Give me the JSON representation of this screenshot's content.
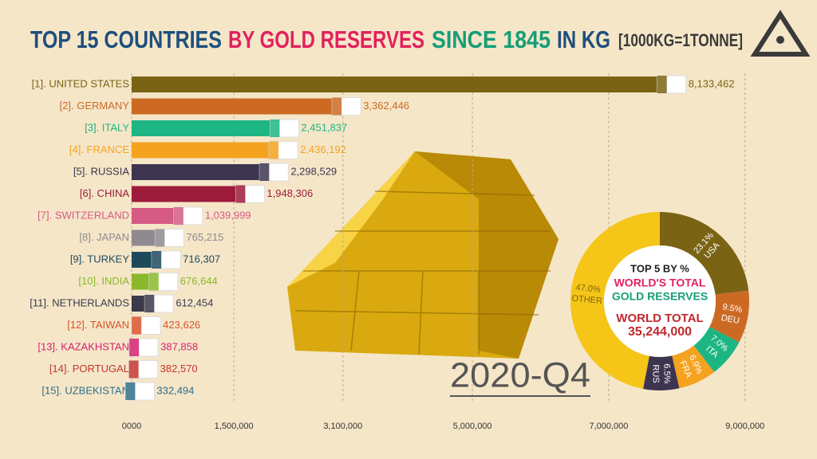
{
  "chart_data": [
    {
      "type": "bar",
      "orientation": "horizontal",
      "title": [
        "TOP 15 COUNTRIES",
        "BY GOLD RESERVES",
        "SINCE 1845",
        "IN KG",
        "[1000KG=1TONNE]"
      ],
      "title_colors": [
        "#1d4f7c",
        "#e2215e",
        "#159e78",
        "#1d4f7c",
        "#3a3a3a"
      ],
      "categories": [
        "[1]. UNITED STATES",
        "[2]. GERMANY",
        "[3]. ITALY",
        "[4]. FRANCE",
        "[5]. RUSSIA",
        "[6]. CHINA",
        "[7]. SWITZERLAND",
        "[8]. JAPAN",
        "[9]. TURKEY",
        "[10]. INDIA",
        "[11]. NETHERLANDS",
        "[12]. TAIWAN",
        "[13]. KAZAKHSTAN",
        "[14]. PORTUGAL",
        "[15]. UZBEKISTAN"
      ],
      "values": [
        8133462,
        3362446,
        2451837,
        2436192,
        2298529,
        1948306,
        1039999,
        765215,
        716307,
        676644,
        612454,
        423626,
        387858,
        382570,
        332494
      ],
      "value_labels": [
        "8,133,462",
        "3,362,446",
        "2,451,837",
        "2,436,192",
        "2,298,529",
        "1,948,306",
        "1,039,999",
        "765,215",
        "716,307",
        "676,644",
        "612,454",
        "423,626",
        "387,858",
        "382,570",
        "332,494"
      ],
      "colors": [
        "#7a6414",
        "#cc6a24",
        "#1db584",
        "#f5a21f",
        "#3d3550",
        "#9c1b3a",
        "#d65a86",
        "#8e8a90",
        "#1f4a5c",
        "#8ab82a",
        "#3a3a4a",
        "#d9532a",
        "#d4236e",
        "#c2372e",
        "#2c6f8a"
      ],
      "xlim": [
        0,
        9600000
      ],
      "xticks": [
        {
          "value": 0,
          "label": "0000"
        },
        {
          "value": 1500000,
          "label": "1,500,000"
        },
        {
          "value": 3100000,
          "label": "3,100,000"
        },
        {
          "value": 5000000,
          "label": "5,000,000"
        },
        {
          "value": 7000000,
          "label": "7,000,000"
        },
        {
          "value": 9000000,
          "label": "9,000,000"
        }
      ],
      "grid": true,
      "annotation": "2020-Q4"
    },
    {
      "type": "pie",
      "donut": true,
      "categories": [
        "USA",
        "DEU",
        "ITA",
        "FRA",
        "RUS",
        "OTHER"
      ],
      "values": [
        23.1,
        9.5,
        7.0,
        6.9,
        6.5,
        47.0
      ],
      "value_labels": [
        "23.1%",
        "9.5%",
        "7.0%",
        "6.9%",
        "6.5%",
        "47.0%"
      ],
      "colors": [
        "#7a6414",
        "#cc6a24",
        "#1db584",
        "#f5a21f",
        "#3d3550",
        "#f5c518"
      ],
      "center_text": [
        "TOP 5 BY %",
        "WORLD'S TOTAL",
        "GOLD RESERVES",
        "WORLD TOTAL",
        "35,244,000"
      ],
      "center_colors": [
        "#1d1d1d",
        "#e2215e",
        "#159e78",
        "#c0282d",
        "#c0282d"
      ]
    }
  ]
}
